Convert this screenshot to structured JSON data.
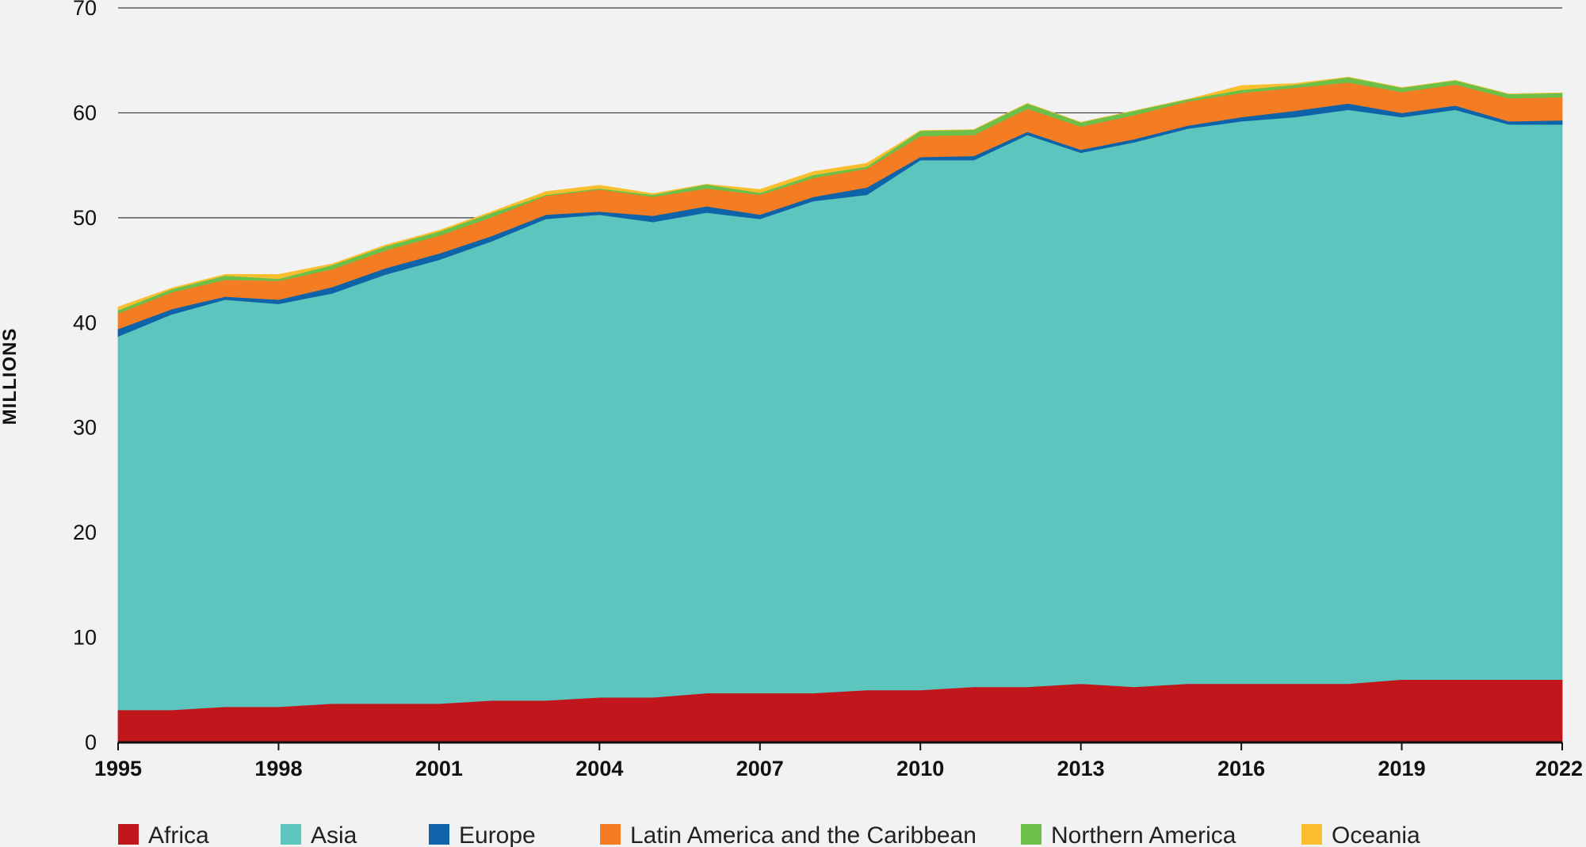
{
  "chart_data": {
    "type": "area",
    "stacked": true,
    "ylabel": "MILLIONS",
    "xlabel": "",
    "ylim": [
      0,
      70
    ],
    "yticks": [
      0,
      10,
      20,
      30,
      40,
      50,
      60,
      70
    ],
    "xticks": [
      1995,
      1998,
      2001,
      2004,
      2007,
      2010,
      2013,
      2016,
      2019,
      2022
    ],
    "grid": "horizontal",
    "legend_position": "bottom",
    "x": [
      1995,
      1996,
      1997,
      1998,
      1999,
      2000,
      2001,
      2002,
      2003,
      2004,
      2005,
      2006,
      2007,
      2008,
      2009,
      2010,
      2011,
      2012,
      2013,
      2014,
      2015,
      2016,
      2017,
      2018,
      2019,
      2020,
      2021,
      2022
    ],
    "series": [
      {
        "name": "Africa",
        "color": "#c1161c",
        "values": [
          3.1,
          3.1,
          3.4,
          3.4,
          3.7,
          3.7,
          3.7,
          4.0,
          4.0,
          4.3,
          4.3,
          4.7,
          4.7,
          4.7,
          5.0,
          5.0,
          5.3,
          5.3,
          5.6,
          5.3,
          5.6,
          5.6,
          5.6,
          5.6,
          6.0,
          6.0,
          6.0,
          6.0
        ]
      },
      {
        "name": "Asia",
        "color": "#5bc5be",
        "values": [
          35.6,
          37.7,
          38.8,
          38.4,
          39.1,
          40.9,
          42.3,
          43.8,
          45.9,
          46.0,
          45.3,
          45.8,
          45.2,
          46.9,
          47.2,
          50.5,
          50.2,
          52.6,
          50.6,
          51.9,
          52.9,
          53.6,
          54.0,
          54.7,
          53.6,
          54.3,
          52.9,
          52.9
        ]
      },
      {
        "name": "Europe",
        "color": "#0f63a8",
        "values": [
          0.7,
          0.5,
          0.3,
          0.4,
          0.6,
          0.6,
          0.6,
          0.5,
          0.4,
          0.3,
          0.6,
          0.6,
          0.4,
          0.4,
          0.7,
          0.3,
          0.4,
          0.3,
          0.3,
          0.3,
          0.3,
          0.4,
          0.6,
          0.6,
          0.4,
          0.4,
          0.3,
          0.4
        ]
      },
      {
        "name": "Latin America and the Caribbean",
        "color": "#f47c23",
        "values": [
          1.5,
          1.6,
          1.6,
          1.8,
          1.7,
          1.7,
          1.7,
          1.8,
          1.8,
          2.1,
          1.8,
          1.7,
          1.9,
          1.8,
          1.8,
          2.0,
          2.0,
          2.2,
          2.2,
          2.3,
          2.3,
          2.3,
          2.2,
          2.0,
          2.0,
          2.0,
          2.2,
          2.2
        ]
      },
      {
        "name": "Northern America",
        "color": "#6cc04a",
        "values": [
          0.3,
          0.3,
          0.4,
          0.2,
          0.4,
          0.4,
          0.4,
          0.4,
          0.1,
          0.1,
          0.2,
          0.4,
          0.2,
          0.3,
          0.2,
          0.5,
          0.5,
          0.5,
          0.4,
          0.4,
          0.2,
          0.3,
          0.3,
          0.5,
          0.4,
          0.4,
          0.4,
          0.4
        ]
      },
      {
        "name": "Oceania",
        "color": "#fbbf2e",
        "values": [
          0.3,
          0.1,
          0.1,
          0.4,
          0.1,
          0.1,
          0.1,
          0.1,
          0.3,
          0.3,
          0.1,
          0.0,
          0.3,
          0.3,
          0.3,
          0.0,
          0.0,
          0.0,
          0.0,
          0.0,
          0.0,
          0.4,
          0.1,
          0.0,
          0.0,
          0.0,
          0.0,
          0.0
        ]
      }
    ]
  }
}
